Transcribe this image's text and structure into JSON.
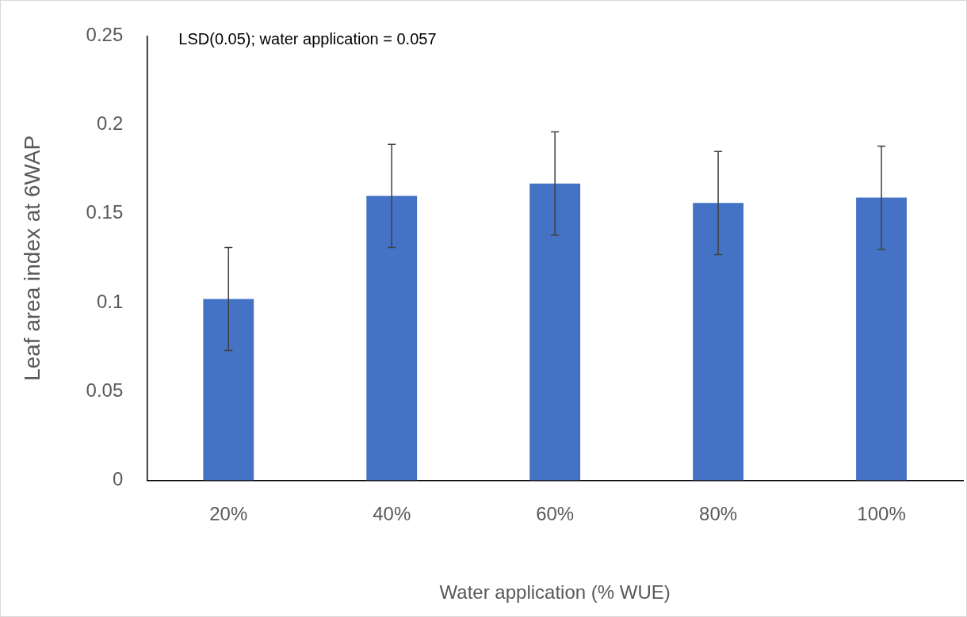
{
  "chart_data": {
    "type": "bar",
    "xlabel": "Water application (% WUE)",
    "ylabel": "Leaf area index at 6WAP",
    "categories": [
      "20%",
      "40%",
      "60%",
      "80%",
      "100%"
    ],
    "values": [
      0.102,
      0.16,
      0.167,
      0.156,
      0.159
    ],
    "errors": [
      0.029,
      0.029,
      0.029,
      0.029,
      0.029
    ],
    "color": "#4472c4",
    "ylim": [
      0,
      0.25
    ],
    "yticks": [
      0,
      0.05,
      0.1,
      0.15,
      0.2,
      0.25
    ],
    "grid": false,
    "legend": false,
    "annotations": [
      "LSD(0.05); water application = 0.057"
    ]
  }
}
